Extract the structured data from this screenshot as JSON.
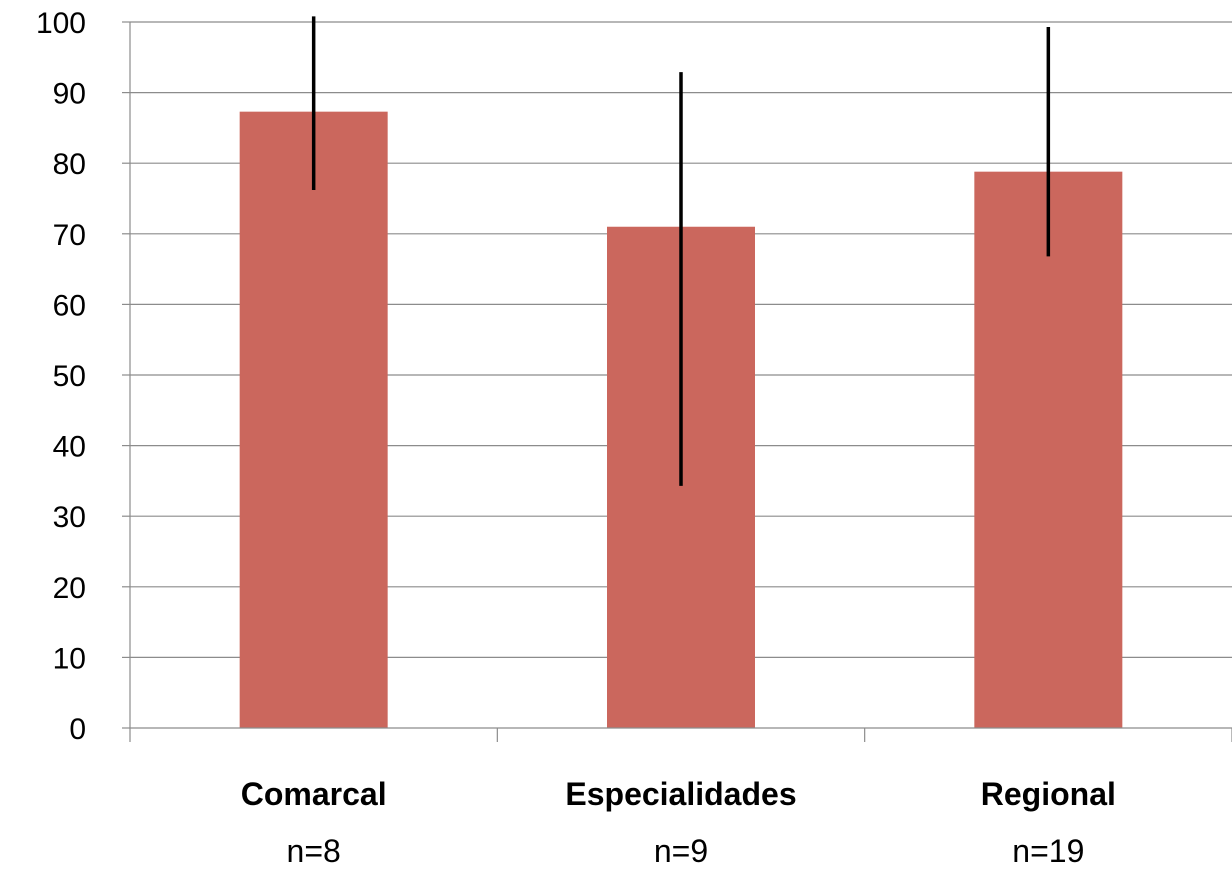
{
  "chart_data": {
    "type": "bar",
    "categories": [
      "Comarcal",
      "Especialidades",
      "Regional"
    ],
    "sample_sizes": [
      "n=8",
      "n=9",
      "n=19"
    ],
    "series": [
      {
        "values": [
          87.3,
          71.0,
          78.8
        ],
        "error_low": [
          76.2,
          34.3,
          66.8
        ],
        "error_high": [
          100.8,
          92.9,
          99.3
        ]
      }
    ],
    "ylim": [
      0,
      100
    ],
    "yticks": [
      0,
      10,
      20,
      30,
      40,
      50,
      60,
      70,
      80,
      90,
      100
    ],
    "grid": true,
    "legend": "none",
    "colors": {
      "bar": "#CB675D",
      "error_bar": "#000000",
      "grid": "#8C8C8C",
      "axis": "#8C8C8C"
    }
  }
}
